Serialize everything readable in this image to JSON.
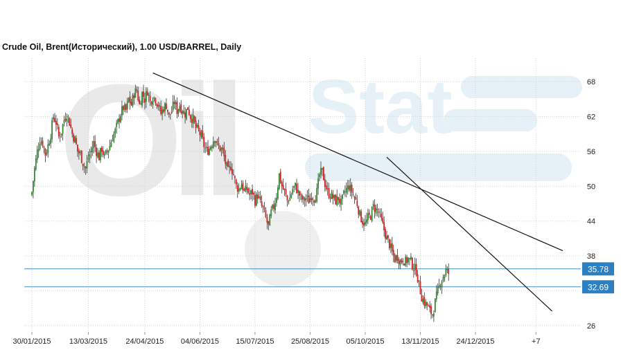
{
  "chart_data": {
    "type": "candlestick",
    "title": "Crude Oil, Brent(Исторический), 1.00 USD/BARREL, Daily",
    "watermark": "OilStat",
    "ylim": [
      25,
      70
    ],
    "y_ticks": [
      68,
      62,
      56,
      50,
      44,
      38,
      32,
      26
    ],
    "y_tick_labels": [
      "68",
      "62",
      "56",
      "50",
      "44",
      "38",
      "",
      "26"
    ],
    "x_tick_labels": [
      "30/01/2015",
      "13/03/2015",
      "24/04/2015",
      "04/06/2015",
      "15/07/2015",
      "25/08/2015",
      "05/10/2015",
      "13/11/2015",
      "24/12/2015",
      "+7"
    ],
    "x_range_days": [
      0,
      380
    ],
    "x_tick_days": [
      0,
      42,
      84,
      125,
      166,
      207,
      248,
      289,
      330,
      375
    ],
    "horizontal_levels": [
      {
        "value": 35.78,
        "label": "35.78"
      },
      {
        "value": 32.69,
        "label": "32.69"
      }
    ],
    "trend_lines": [
      {
        "from": [
          90,
          69.5
        ],
        "to": [
          395,
          38.9
        ]
      },
      {
        "from": [
          264,
          55.0
        ],
        "to": [
          387,
          28.5
        ]
      }
    ],
    "close_points": [
      [
        0,
        49.0
      ],
      [
        2,
        53.0
      ],
      [
        4,
        56.0
      ],
      [
        6,
        58.0
      ],
      [
        8,
        57.5
      ],
      [
        10,
        55.5
      ],
      [
        12,
        57.0
      ],
      [
        14,
        59.0
      ],
      [
        16,
        62.0
      ],
      [
        18,
        61.0
      ],
      [
        20,
        58.5
      ],
      [
        22,
        59.5
      ],
      [
        24,
        61.5
      ],
      [
        26,
        62.5
      ],
      [
        28,
        61.0
      ],
      [
        30,
        59.0
      ],
      [
        32,
        58.0
      ],
      [
        34,
        56.0
      ],
      [
        36,
        55.5
      ],
      [
        38,
        54.0
      ],
      [
        40,
        53.0
      ],
      [
        42,
        55.0
      ],
      [
        44,
        56.0
      ],
      [
        46,
        57.5
      ],
      [
        48,
        56.0
      ],
      [
        50,
        55.0
      ],
      [
        52,
        56.5
      ],
      [
        54,
        55.0
      ],
      [
        56,
        56.0
      ],
      [
        58,
        57.0
      ],
      [
        60,
        58.5
      ],
      [
        62,
        59.5
      ],
      [
        66,
        62.5
      ],
      [
        68,
        63.5
      ],
      [
        70,
        63.0
      ],
      [
        72,
        65.0
      ],
      [
        74,
        64.0
      ],
      [
        76,
        66.0
      ],
      [
        78,
        66.5
      ],
      [
        80,
        64.0
      ],
      [
        82,
        66.0
      ],
      [
        84,
        65.0
      ],
      [
        86,
        66.5
      ],
      [
        88,
        64.5
      ],
      [
        90,
        65.5
      ],
      [
        92,
        65.0
      ],
      [
        94,
        64.0
      ],
      [
        96,
        62.5
      ],
      [
        98,
        63.5
      ],
      [
        100,
        64.0
      ],
      [
        102,
        62.0
      ],
      [
        104,
        63.0
      ],
      [
        106,
        64.5
      ],
      [
        108,
        63.0
      ],
      [
        110,
        64.0
      ],
      [
        112,
        63.0
      ],
      [
        114,
        62.5
      ],
      [
        116,
        63.5
      ],
      [
        118,
        62.0
      ],
      [
        120,
        61.5
      ],
      [
        122,
        60.0
      ],
      [
        124,
        59.5
      ],
      [
        126,
        58.5
      ],
      [
        128,
        57.0
      ],
      [
        130,
        56.0
      ],
      [
        132,
        56.5
      ],
      [
        134,
        57.5
      ],
      [
        136,
        58.5
      ],
      [
        138,
        57.0
      ],
      [
        140,
        56.5
      ],
      [
        142,
        56.0
      ],
      [
        144,
        54.0
      ],
      [
        146,
        52.5
      ],
      [
        148,
        53.5
      ],
      [
        150,
        52.0
      ],
      [
        152,
        50.0
      ],
      [
        154,
        49.5
      ],
      [
        156,
        50.5
      ],
      [
        158,
        49.0
      ],
      [
        160,
        49.5
      ],
      [
        162,
        48.5
      ],
      [
        164,
        49.0
      ],
      [
        166,
        47.5
      ],
      [
        168,
        48.5
      ],
      [
        170,
        47.0
      ],
      [
        172,
        46.0
      ],
      [
        174,
        44.5
      ],
      [
        176,
        43.0
      ],
      [
        178,
        45.5
      ],
      [
        180,
        46.5
      ],
      [
        182,
        48.5
      ],
      [
        184,
        52.0
      ],
      [
        186,
        50.0
      ],
      [
        188,
        49.0
      ],
      [
        190,
        47.5
      ],
      [
        192,
        48.0
      ],
      [
        194,
        49.5
      ],
      [
        196,
        50.0
      ],
      [
        198,
        49.0
      ],
      [
        200,
        48.0
      ],
      [
        202,
        47.5
      ],
      [
        204,
        48.0
      ],
      [
        206,
        47.5
      ],
      [
        208,
        48.5
      ],
      [
        210,
        48.0
      ],
      [
        212,
        49.0
      ],
      [
        214,
        52.0
      ],
      [
        216,
        52.5
      ],
      [
        218,
        50.5
      ],
      [
        220,
        49.0
      ],
      [
        222,
        48.5
      ],
      [
        224,
        48.0
      ],
      [
        226,
        47.5
      ],
      [
        228,
        48.0
      ],
      [
        230,
        47.0
      ],
      [
        232,
        48.5
      ],
      [
        234,
        49.5
      ],
      [
        236,
        50.0
      ],
      [
        238,
        49.0
      ],
      [
        240,
        48.0
      ],
      [
        242,
        47.0
      ],
      [
        244,
        45.0
      ],
      [
        246,
        44.0
      ],
      [
        248,
        43.5
      ],
      [
        250,
        44.5
      ],
      [
        252,
        45.0
      ],
      [
        254,
        46.5
      ],
      [
        256,
        46.0
      ],
      [
        258,
        45.5
      ],
      [
        260,
        44.0
      ],
      [
        262,
        42.5
      ],
      [
        264,
        41.0
      ],
      [
        266,
        40.0
      ],
      [
        268,
        38.5
      ],
      [
        270,
        37.5
      ],
      [
        272,
        38.0
      ],
      [
        274,
        37.0
      ],
      [
        276,
        37.5
      ],
      [
        278,
        37.0
      ],
      [
        280,
        37.5
      ],
      [
        282,
        37.0
      ],
      [
        284,
        36.0
      ],
      [
        286,
        35.5
      ],
      [
        288,
        33.0
      ],
      [
        290,
        31.0
      ],
      [
        292,
        30.0
      ],
      [
        294,
        29.5
      ],
      [
        296,
        28.5
      ],
      [
        298,
        28.0
      ],
      [
        300,
        30.0
      ],
      [
        302,
        32.0
      ],
      [
        304,
        33.5
      ],
      [
        306,
        34.5
      ],
      [
        308,
        35.5
      ],
      [
        310,
        35.0
      ]
    ]
  }
}
